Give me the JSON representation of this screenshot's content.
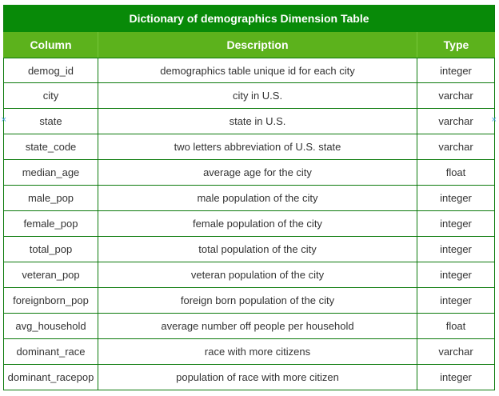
{
  "table": {
    "title": "Dictionary of demographics Dimension Table",
    "headers": [
      "Column",
      "Description",
      "Type"
    ],
    "rows": [
      [
        "demog_id",
        "demographics table unique  id for each city",
        "integer"
      ],
      [
        "city",
        "city in U.S.",
        "varchar"
      ],
      [
        "state",
        "state in U.S.",
        "varchar"
      ],
      [
        "state_code",
        "two letters abbreviation of U.S. state",
        "varchar"
      ],
      [
        "median_age",
        "average age for the city",
        "float"
      ],
      [
        "male_pop",
        "male population of the city",
        "integer"
      ],
      [
        "female_pop",
        "female population of the city",
        "integer"
      ],
      [
        "total_pop",
        "total population of the city",
        "integer"
      ],
      [
        "veteran_pop",
        "veteran population of the city",
        "integer"
      ],
      [
        "foreignborn_pop",
        "foreign born population of the city",
        "integer"
      ],
      [
        "avg_household",
        "average number off people per household",
        "float"
      ],
      [
        "dominant_race",
        "race with more citizens",
        "varchar"
      ],
      [
        "dominant_racepop",
        "population of race with more citizen",
        "integer"
      ]
    ]
  },
  "colors": {
    "title_bg": "#088a08",
    "header_bg": "#5cb21c",
    "border": "#0b7a0b",
    "selection_handle": "#3fa0e0"
  },
  "icons": {
    "selection_handle_glyph": "×"
  }
}
